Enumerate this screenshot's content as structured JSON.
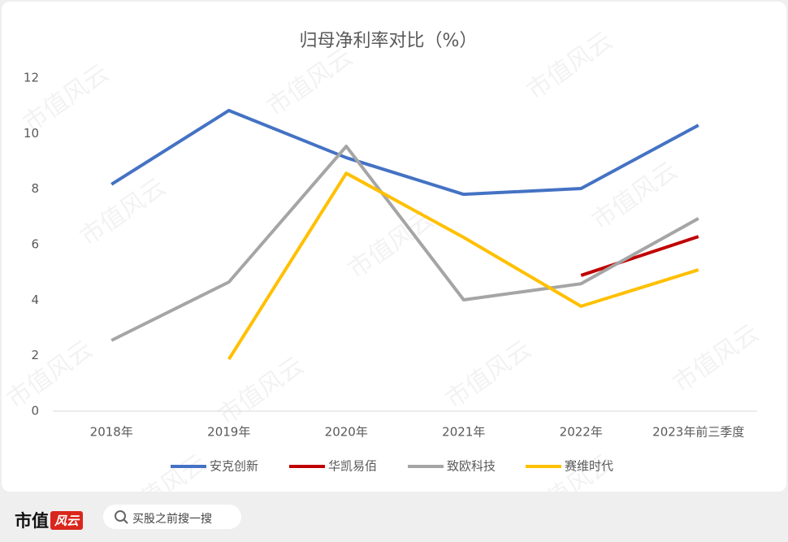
{
  "chart_data": {
    "type": "line",
    "title": "归母净利率对比（%）",
    "categories": [
      "2018年",
      "2019年",
      "2020年",
      "2021年",
      "2022年",
      "2023年前三季度"
    ],
    "series": [
      {
        "name": "安克创新",
        "color": "#4472c4",
        "values": [
          8.17,
          10.83,
          9.13,
          7.81,
          8.02,
          10.3
        ]
      },
      {
        "name": "华凯易佰",
        "color": "#c00000",
        "values": [
          null,
          null,
          null,
          null,
          4.89,
          6.29
        ]
      },
      {
        "name": "致欧科技",
        "color": "#a5a5a5",
        "values": [
          2.55,
          4.65,
          9.54,
          4.01,
          4.59,
          6.94
        ]
      },
      {
        "name": "赛维时代",
        "color": "#ffc000",
        "values": [
          null,
          1.87,
          8.57,
          6.26,
          3.78,
          5.09
        ]
      }
    ],
    "ylim": [
      0,
      12
    ],
    "yticks": [
      0,
      2,
      4,
      6,
      8,
      10,
      12
    ],
    "grid": false,
    "legend": "bottom"
  },
  "watermark": "市值风云",
  "footer": {
    "logo_text": "市值",
    "logo_badge": "风云",
    "search_placeholder": "买股之前搜一搜"
  }
}
